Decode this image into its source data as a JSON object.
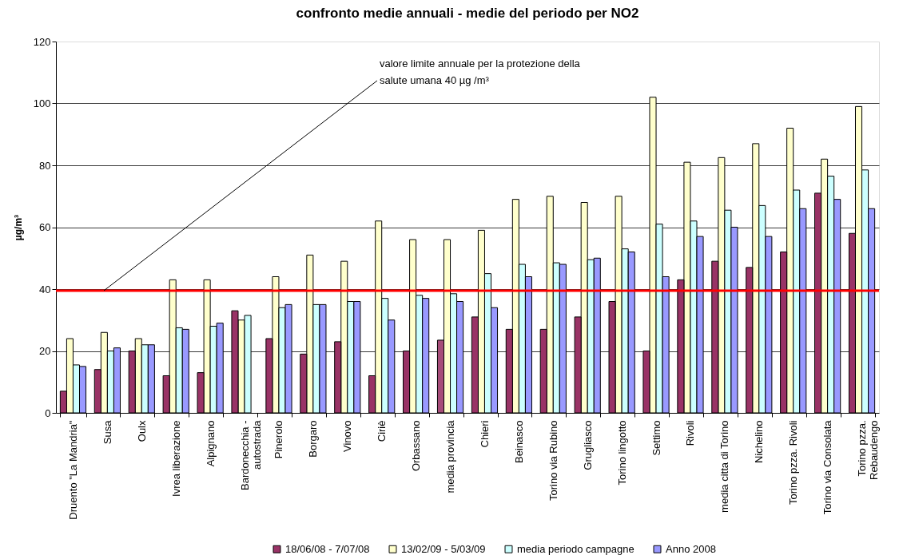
{
  "chart_data": {
    "type": "bar",
    "title": "confronto medie annuali - medie del periodo per NO2",
    "ylabel": "µg/m³",
    "categories": [
      "Druento \"La Mandria\"",
      "Susa",
      "Oulx",
      "Ivrea liberazione",
      "Alpignano",
      "Bardonecchia -\nautostrada",
      "Pinerolo",
      "Borgaro",
      "Vinovo",
      "Ciriè",
      "Orbassano",
      "media provincia",
      "Chieri",
      "Beinasco",
      "Torino via Rubino",
      "Grugliasco",
      "Torino lingotto",
      "Settimo",
      "Rivoli",
      "media citta di Torino",
      "Nichelino",
      "Torino pzza. Rivoli",
      "Torino via Consolata",
      "Torino pzza.\nRebaudengo"
    ],
    "series": [
      {
        "name": "18/06/08 - 7/07/08",
        "color": "#993366",
        "colors": [
          "#993366",
          "#993366",
          "#993366",
          "#993366",
          "#993366",
          "#993366",
          "#993366",
          "#993366",
          "#993366",
          "#993366",
          "#993366",
          "#a64d79",
          "#993366",
          "#993366",
          "#993366",
          "#993366",
          "#993366",
          "#993366",
          "#993366",
          "#993366",
          "#993366",
          "#993366",
          "#993366",
          "#993366"
        ],
        "values": [
          7,
          14,
          20,
          12,
          13,
          33,
          24,
          19,
          23,
          12,
          20,
          23.5,
          31,
          27,
          27,
          31,
          36,
          20,
          43,
          49,
          47,
          52,
          71,
          58
        ]
      },
      {
        "name": "13/02/09 - 5/03/09",
        "color": "#ffffcc",
        "values": [
          24,
          26,
          24,
          43,
          43,
          30,
          44,
          51,
          49,
          62,
          56,
          56,
          59,
          69,
          70,
          68,
          70,
          102,
          81,
          82.5,
          87,
          92,
          82,
          99
        ]
      },
      {
        "name": "media periodo campagne",
        "color": "#ccffff",
        "values": [
          15.5,
          20,
          22,
          27.5,
          28,
          31.5,
          34,
          35,
          36,
          37,
          38,
          38.5,
          45,
          48,
          48.5,
          49.5,
          53,
          61,
          62,
          65.5,
          67,
          72,
          76.5,
          78.5
        ]
      },
      {
        "name": "Anno 2008",
        "color": "#9999ff",
        "values": [
          15,
          21,
          22,
          27,
          29,
          null,
          35,
          35,
          36,
          30,
          37,
          36,
          34,
          44,
          48,
          50,
          52,
          44,
          57,
          60,
          57,
          66,
          69,
          66
        ]
      }
    ],
    "ylim": [
      0,
      120
    ],
    "yticks": [
      0,
      20,
      40,
      60,
      80,
      100,
      120
    ],
    "grid": "y",
    "legend": "bottom",
    "ref_lines": [
      {
        "axis": "y",
        "value": 39.5,
        "color": "#ff0000"
      }
    ],
    "annotations": [
      "valore limite annuale per la protezione della\nsalute umana 40 µg /m³"
    ]
  }
}
